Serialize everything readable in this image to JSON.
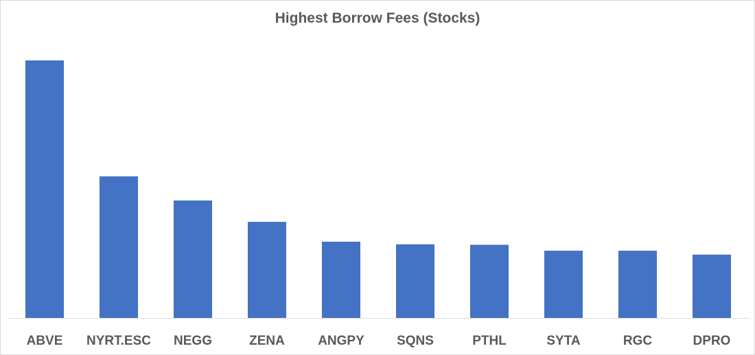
{
  "chart_data": {
    "type": "bar",
    "title": "Highest Borrow Fees (Stocks)",
    "xlabel": "",
    "ylabel": "",
    "categories": [
      "ABVE",
      "NYRT.ESC",
      "NEGG",
      "ZENA",
      "ANGPY",
      "SQNS",
      "PTHL",
      "SYTA",
      "RGC",
      "DPRO"
    ],
    "values": [
      100,
      55,
      45.6,
      37.3,
      29.6,
      28.6,
      28.4,
      26.1,
      26.1,
      24.6
    ],
    "ylim": [
      0,
      100
    ],
    "y_axis_labels_shown": false,
    "grid": false,
    "legend": "none",
    "colors": {
      "bar": "#4472c4",
      "axis": "#d9d9d9",
      "text": "#595959"
    }
  }
}
